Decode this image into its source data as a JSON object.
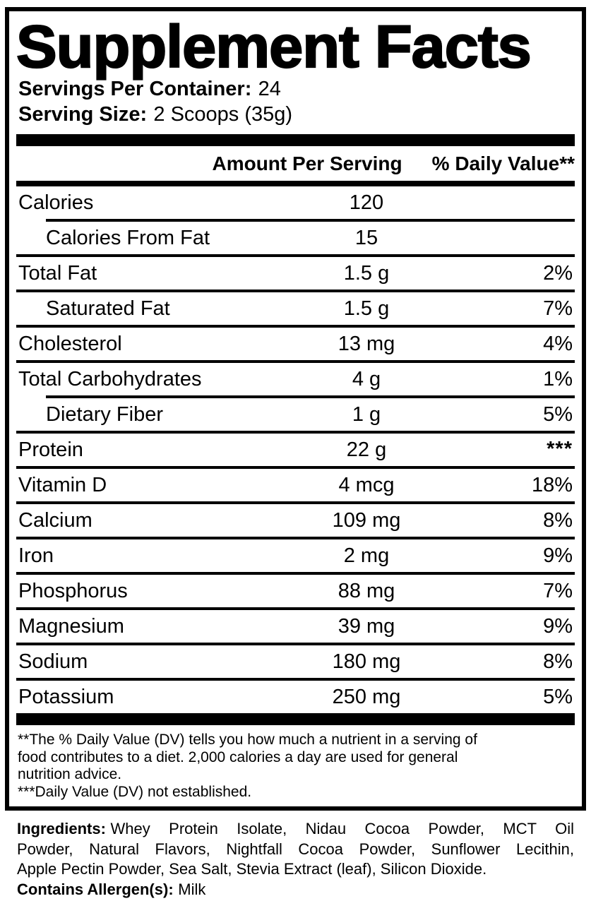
{
  "title": "Supplement Facts",
  "serving_info": {
    "servings_label": "Servings Per Container:",
    "servings_value": "24",
    "size_label": "Serving Size:",
    "size_value": "2 Scoops (35g)"
  },
  "table": {
    "amount_header": "Amount Per Serving",
    "dv_header": "% Daily Value**",
    "rows": [
      {
        "name": "Calories",
        "amount": "120",
        "dv": ""
      },
      {
        "name": "Calories From Fat",
        "amount": "15",
        "dv": ""
      },
      {
        "name": "Total Fat",
        "amount": "1.5 g",
        "dv": "2%"
      },
      {
        "name": "Saturated Fat",
        "amount": "1.5 g",
        "dv": "7%"
      },
      {
        "name": "Cholesterol",
        "amount": "13 mg",
        "dv": "4%"
      },
      {
        "name": "Total Carbohydrates",
        "amount": "4 g",
        "dv": "1%"
      },
      {
        "name": "Dietary Fiber",
        "amount": "1 g",
        "dv": "5%"
      },
      {
        "name": "Protein",
        "amount": "22 g",
        "dv": "***"
      },
      {
        "name": "Vitamin D",
        "amount": "4 mcg",
        "dv": "18%"
      },
      {
        "name": "Calcium",
        "amount": "109 mg",
        "dv": "8%"
      },
      {
        "name": "Iron",
        "amount": "2 mg",
        "dv": "9%"
      },
      {
        "name": "Phosphorus",
        "amount": "88 mg",
        "dv": "7%"
      },
      {
        "name": "Magnesium",
        "amount": "39 mg",
        "dv": "9%"
      },
      {
        "name": "Sodium",
        "amount": "180 mg",
        "dv": "8%"
      },
      {
        "name": "Potassium",
        "amount": "250 mg",
        "dv": "5%"
      }
    ]
  },
  "footnotes": {
    "line1": "**The % Daily Value (DV) tells you how much a nutrient in a serving of",
    "line2": "food contributes to a diet. 2,000 calories a day are used for general",
    "line3": "nutrition advice.",
    "line4": "***Daily Value (DV) not established."
  },
  "ingredients": {
    "label": "Ingredients:",
    "line1_rest": "Whey Protein Isolate, Nidau Cocoa Powder, MCT Oil",
    "line2": "Powder, Natural Flavors, Nightfall Cocoa Powder, Sunflower Lecithin,",
    "line3": "Apple Pectin Powder, Sea Salt, Stevia Extract (leaf), Silicon Dioxide.",
    "allergen_label": "Contains Allergen(s):",
    "allergen_value": "Milk"
  },
  "colors": {
    "ink": "#000000",
    "background": "#ffffff"
  }
}
